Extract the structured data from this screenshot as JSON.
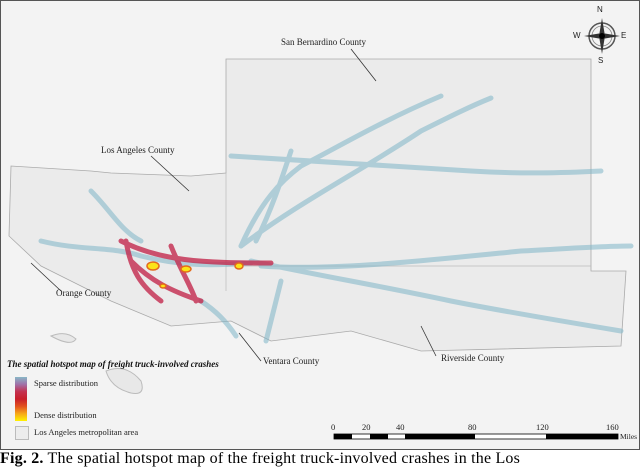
{
  "map": {
    "title": "The spatial hotspot map of freight truck-involved crashes",
    "county_labels": [
      "San Bernardino County",
      "Los Angeles County",
      "Orange County",
      "Ventara County",
      "Riverside County"
    ],
    "legend": {
      "sparse": "Sparse distribution",
      "dense": "Dense distribution",
      "area": "Los Angeles metropolitan area"
    },
    "legend_colors": {
      "sparse": "#88b7c6",
      "mid": "#c81f2b",
      "dense": "#fff200"
    },
    "scale": {
      "ticks": [
        "0",
        "20",
        "40",
        "80",
        "120",
        "160"
      ],
      "unit": "Miles"
    },
    "compass": {
      "n": "N",
      "s": "S",
      "e": "E",
      "w": "W"
    }
  },
  "caption": {
    "label": "Fig. 2.",
    "text": "The spatial hotspot map of the freight truck-involved crashes in the Los"
  }
}
